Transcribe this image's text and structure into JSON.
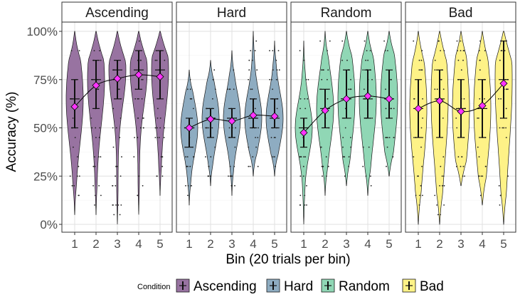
{
  "chart_data": {
    "type": "violin",
    "xlabel": "Bin (20 trials per bin)",
    "ylabel": "Accuracy (%)",
    "ylim": [
      0,
      100
    ],
    "y_ticks": [
      "0%",
      "25%",
      "50%",
      "75%",
      "100%"
    ],
    "y_tick_values": [
      0,
      25,
      50,
      75,
      100
    ],
    "categories": [
      "1",
      "2",
      "3",
      "4",
      "5"
    ],
    "legend_title": "Condition",
    "legend_position": "bottom",
    "grid": true,
    "mean_marker_color": "#ff33ff",
    "panels": [
      {
        "name": "Ascending",
        "color": "#440154",
        "means": [
          61,
          72,
          75.5,
          77.5,
          76.5
        ],
        "quartiles": [
          [
            50,
            75
          ],
          [
            60,
            85
          ],
          [
            65,
            85
          ],
          [
            70,
            90
          ],
          [
            65,
            90
          ]
        ],
        "medians": [
          65,
          75,
          80,
          80,
          80
        ],
        "ranges": [
          [
            5,
            100
          ],
          [
            5,
            100
          ],
          [
            0,
            100
          ],
          [
            5,
            100
          ],
          [
            15,
            100
          ]
        ]
      },
      {
        "name": "Hard",
        "color": "#31688e",
        "means": [
          50,
          54.5,
          53.5,
          56.5,
          56
        ],
        "quartiles": [
          [
            40,
            55
          ],
          [
            45,
            60
          ],
          [
            45,
            60
          ],
          [
            50,
            65
          ],
          [
            50,
            65
          ]
        ],
        "medians": [
          50,
          55,
          55,
          55,
          55
        ],
        "ranges": [
          [
            10,
            80
          ],
          [
            20,
            85
          ],
          [
            15,
            90
          ],
          [
            25,
            100
          ],
          [
            25,
            95
          ]
        ]
      },
      {
        "name": "Random",
        "color": "#35b779",
        "means": [
          47.5,
          59,
          65,
          66.5,
          65
        ],
        "quartiles": [
          [
            40,
            55
          ],
          [
            50,
            70
          ],
          [
            55,
            80
          ],
          [
            55,
            80
          ],
          [
            55,
            80
          ]
        ],
        "medians": [
          50,
          60,
          65,
          65,
          65
        ],
        "ranges": [
          [
            0,
            95
          ],
          [
            15,
            100
          ],
          [
            20,
            100
          ],
          [
            15,
            100
          ],
          [
            25,
            100
          ]
        ]
      },
      {
        "name": "Bad",
        "color": "#fde725",
        "means": [
          60,
          64,
          58.5,
          61.5,
          73
        ],
        "quartiles": [
          [
            45,
            75
          ],
          [
            45,
            80
          ],
          [
            45,
            75
          ],
          [
            45,
            75
          ],
          [
            55,
            95
          ]
        ],
        "medians": [
          60,
          65,
          60,
          60,
          75
        ],
        "ranges": [
          [
            0,
            100
          ],
          [
            0,
            100
          ],
          [
            20,
            100
          ],
          [
            10,
            100
          ],
          [
            0,
            100
          ]
        ]
      }
    ]
  }
}
